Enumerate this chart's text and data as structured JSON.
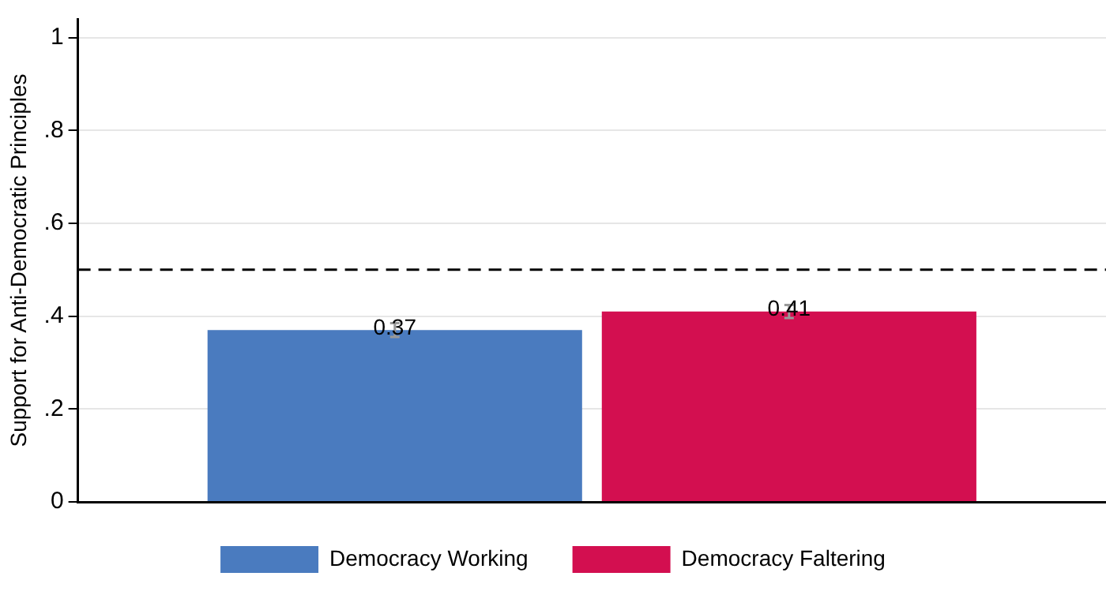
{
  "chart_data": {
    "type": "bar",
    "ylabel": "Support for Anti-Democratic Principles",
    "categories": [
      null
    ],
    "series": [
      {
        "name": "Democracy Working",
        "color": "#4a7bbf",
        "values": [
          0.37
        ],
        "errors": [
          0.015
        ]
      },
      {
        "name": "Democracy Faltering",
        "color": "#d30f50",
        "values": [
          0.41
        ],
        "errors": [
          0.014
        ]
      }
    ],
    "ylim": [
      0,
      1.04
    ],
    "yticks": [
      0,
      {
        "value": 0.2,
        "label": ".2"
      },
      {
        "value": 0.4,
        "label": ".4"
      },
      {
        "value": 0.6,
        "label": ".6"
      },
      {
        "value": 0.8,
        "label": ".8"
      },
      1
    ],
    "ref_lines": [
      {
        "axis": "y",
        "value": 0.5,
        "line_style": "dashed",
        "color": "#000000"
      }
    ],
    "data_labels": true,
    "grid": "y",
    "legend": "bottom"
  }
}
